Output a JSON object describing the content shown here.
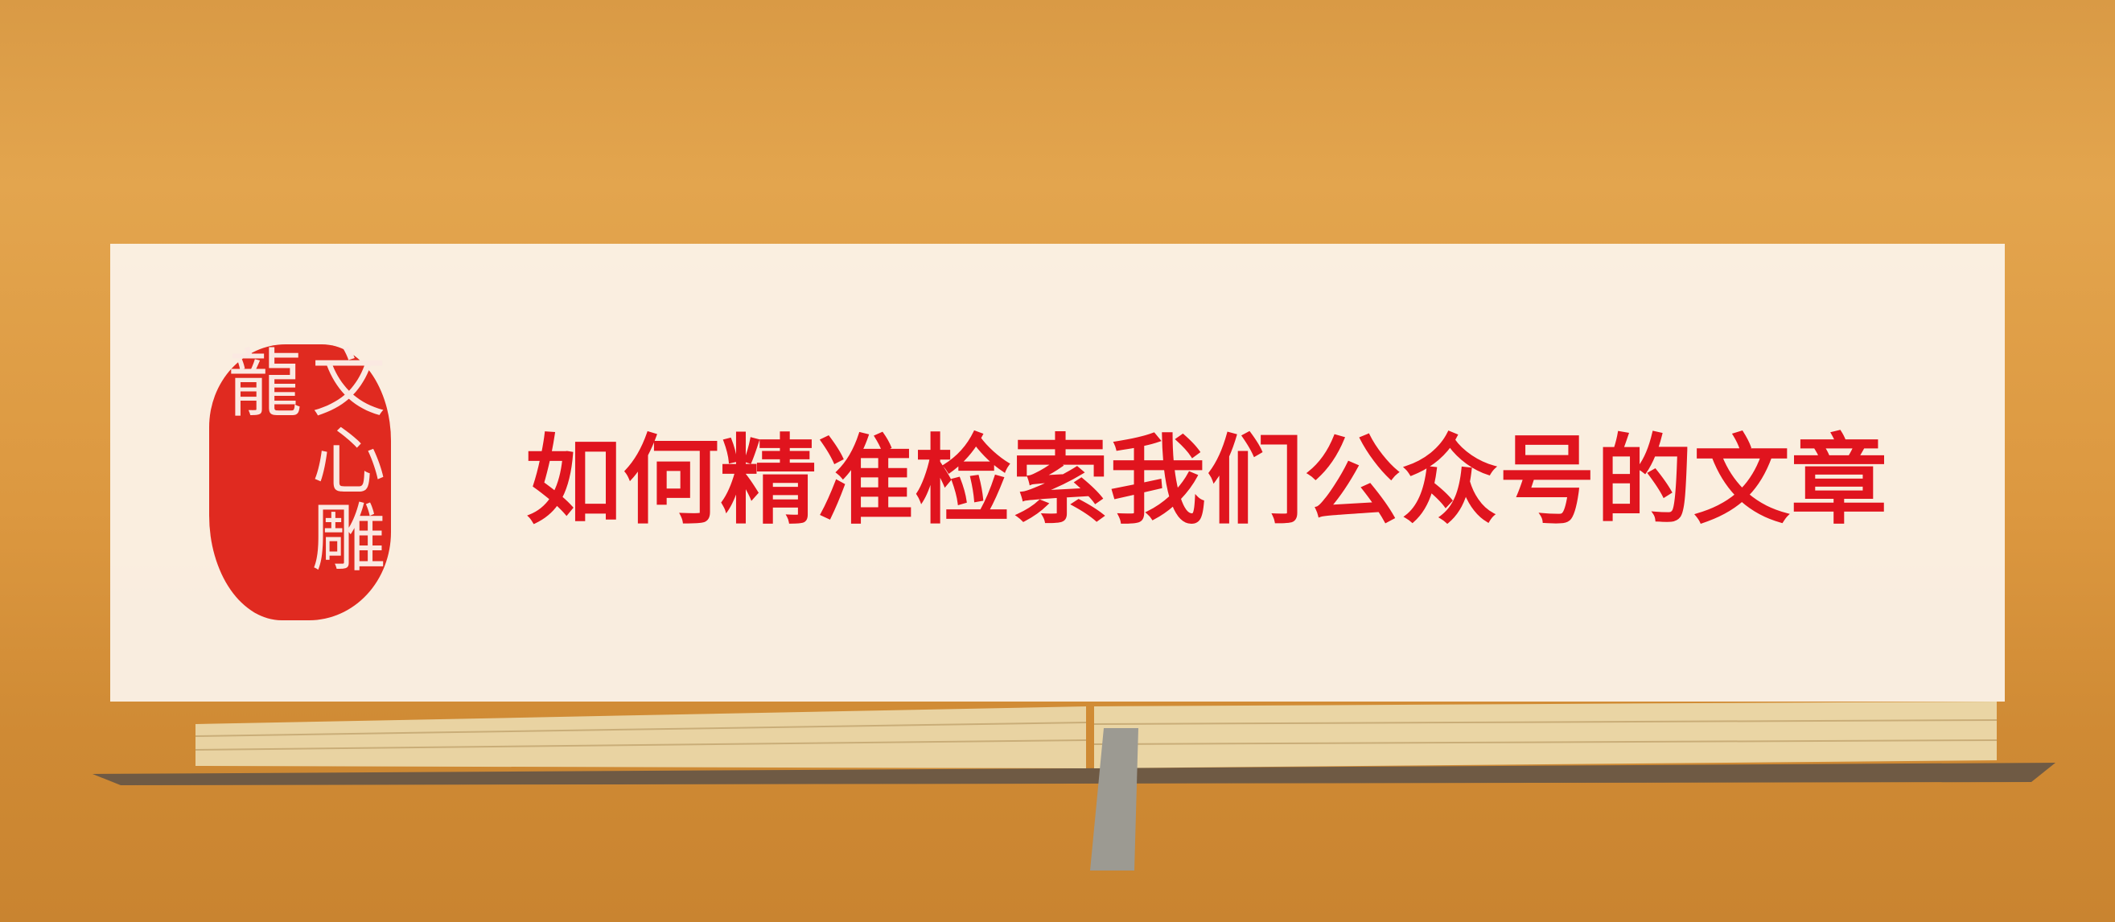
{
  "seal": "文心雕龍",
  "title": "如何精准检索我们公众号的文章"
}
